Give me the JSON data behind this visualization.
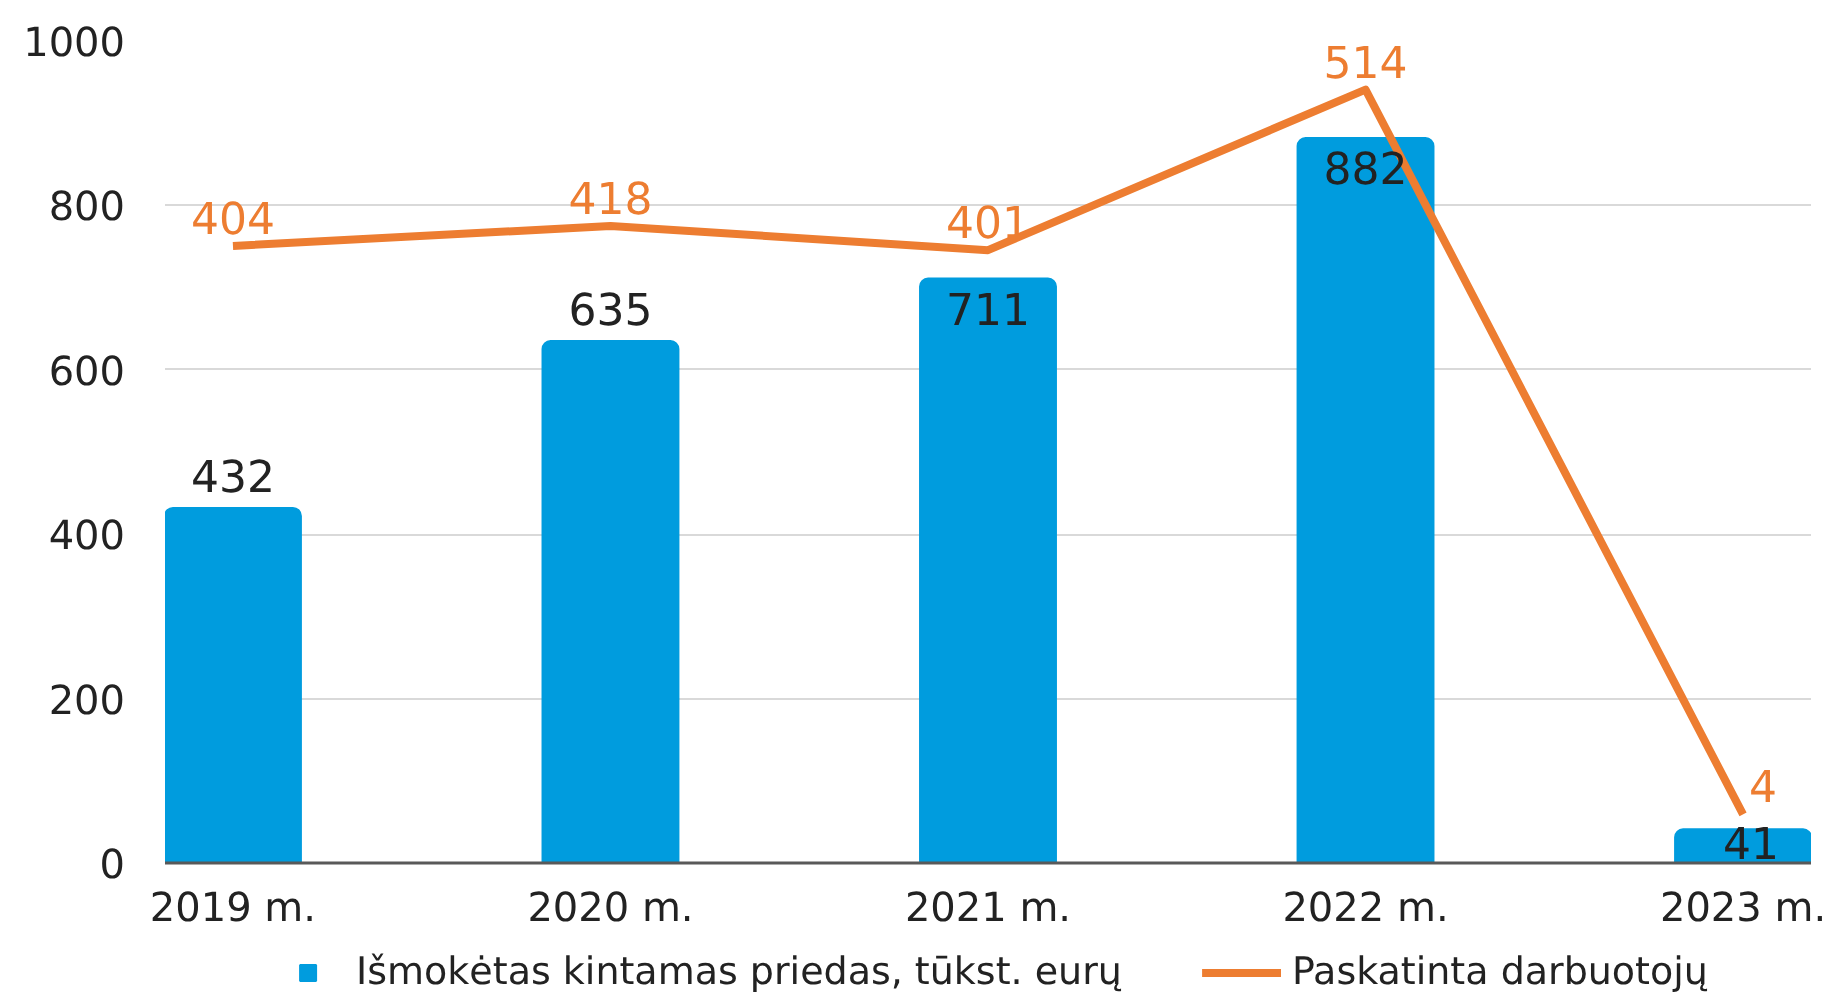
{
  "chart_data": {
    "type": "bar",
    "categories": [
      "2019 m.",
      "2020 m.",
      "2021 m.",
      "2022 m.",
      "2023 m."
    ],
    "series": [
      {
        "name": "Išmokėtas kintamas priedas, tūkst. eurų",
        "color": "#009cde",
        "values": [
          432,
          635,
          711,
          882,
          41
        ]
      },
      {
        "name": "Paskatinta darbuotojų",
        "type": "line",
        "axis": "y2",
        "color": "#ed7d31",
        "values": [
          404,
          418,
          401,
          514,
          4
        ]
      }
    ],
    "ylim": [
      0,
      1000
    ],
    "yticks": [
      0,
      200,
      400,
      600,
      800,
      1000
    ],
    "data_labels": true,
    "grid": "y",
    "legend": "bottom",
    "marker": "none"
  }
}
